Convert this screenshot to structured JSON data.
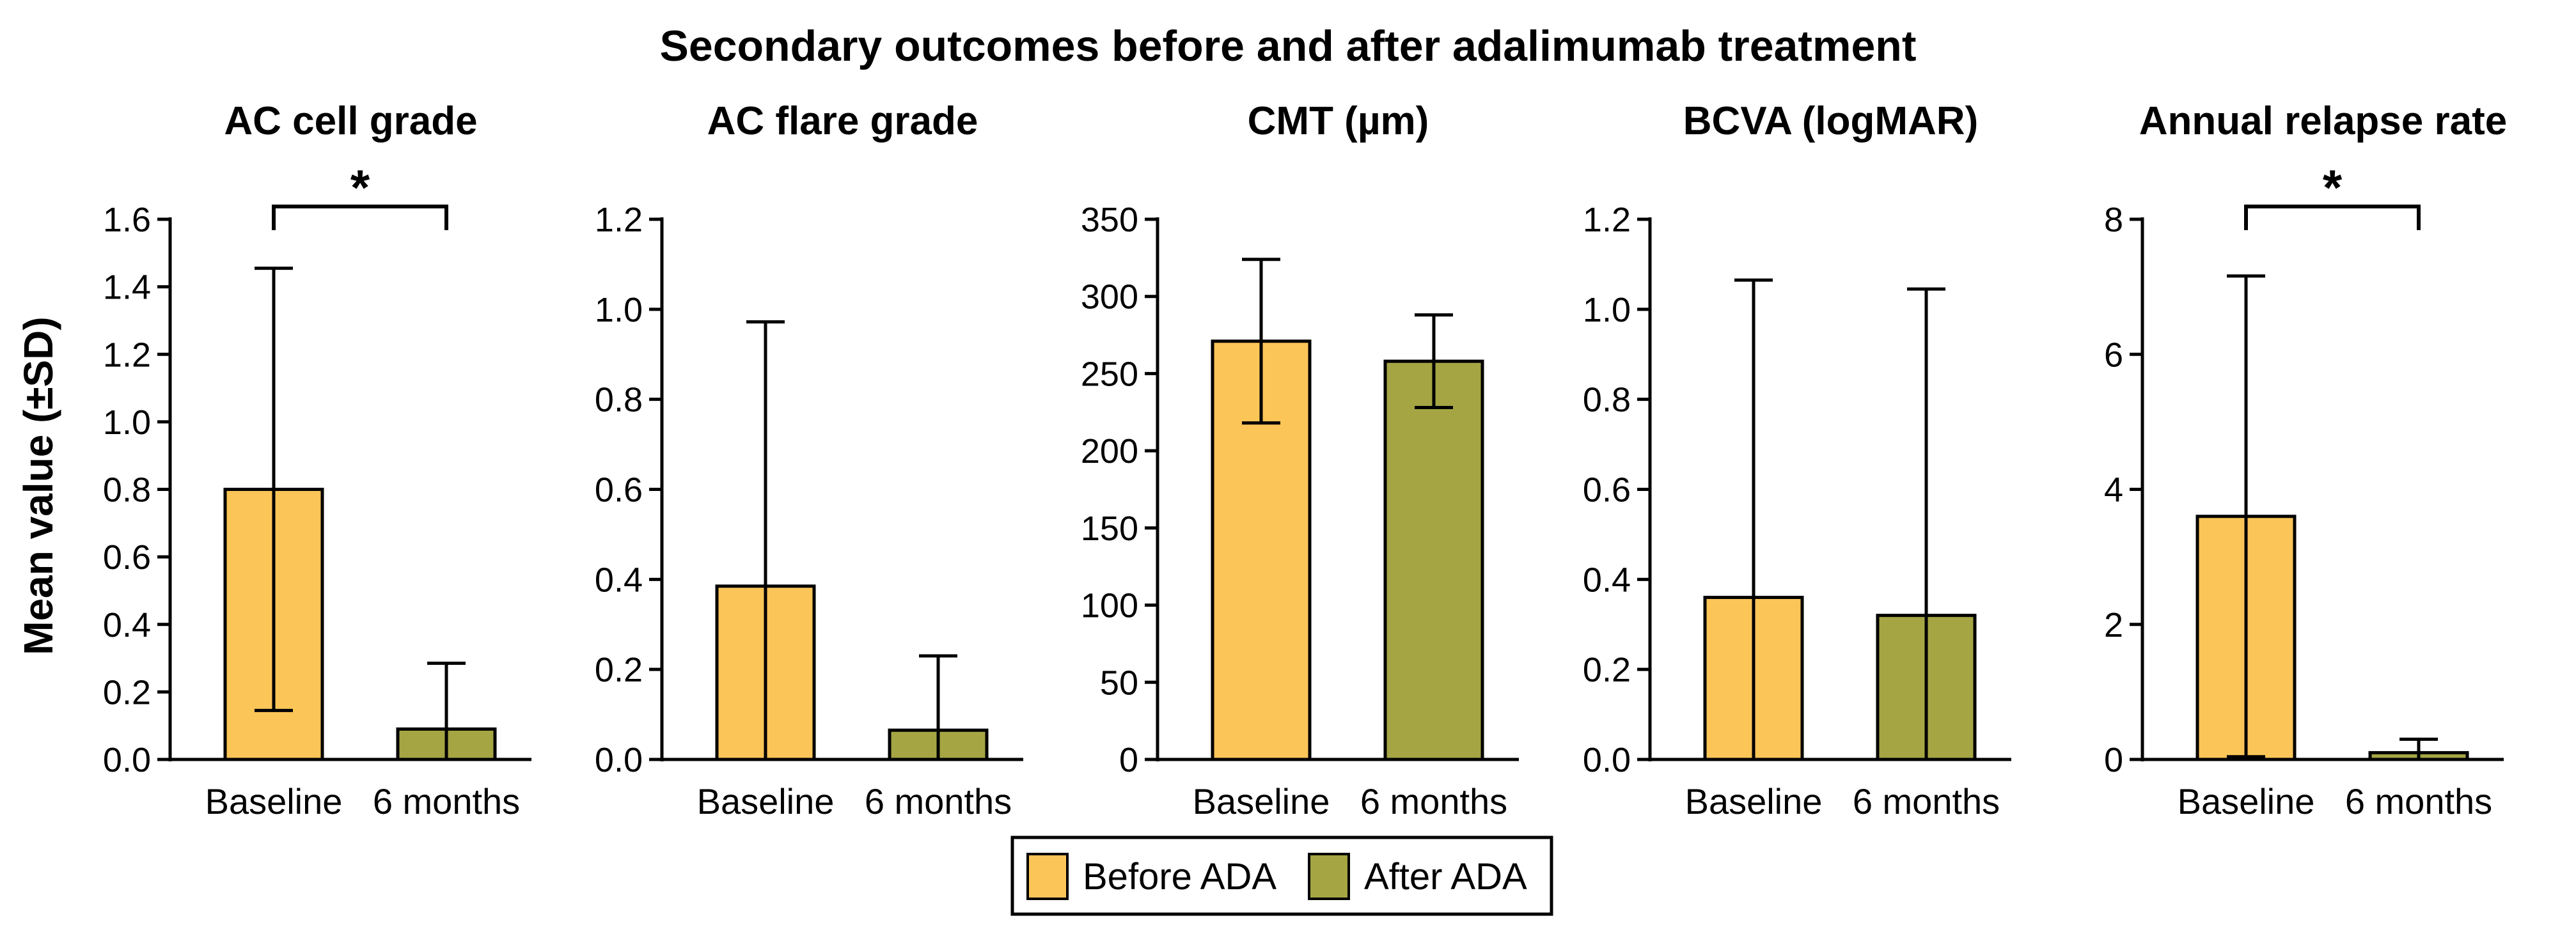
{
  "figure_title": "Secondary outcomes before and after adalimumab treatment",
  "y_axis_label": "Mean value (±SD)",
  "colors": {
    "before": "#FCC558",
    "after": "#A5A544",
    "axis": "#000000"
  },
  "legend": {
    "before_label": "Before ADA",
    "after_label": "After ADA"
  },
  "chart_data": [
    {
      "type": "bar",
      "title": "AC cell grade",
      "categories": [
        "Baseline",
        "6 months"
      ],
      "values": [
        0.8,
        0.09
      ],
      "errors": [
        0.655,
        0.195
      ],
      "ylim": [
        0,
        1.6
      ],
      "ticks": [
        0,
        0.2,
        0.4,
        0.6,
        0.8,
        1.0,
        1.2,
        1.4,
        1.6
      ],
      "tick_labels": [
        "0.0",
        "0.2",
        "0.4",
        "0.6",
        "0.8",
        "1.0",
        "1.2",
        "1.4",
        "1.6"
      ],
      "significance": "*"
    },
    {
      "type": "bar",
      "title": "AC flare grade",
      "categories": [
        "Baseline",
        "6 months"
      ],
      "values": [
        0.385,
        0.065
      ],
      "errors": [
        0.587,
        0.165
      ],
      "ylim": [
        0,
        1.2
      ],
      "ticks": [
        0,
        0.2,
        0.4,
        0.6,
        0.8,
        1.0,
        1.2
      ],
      "tick_labels": [
        "0.0",
        "0.2",
        "0.4",
        "0.6",
        "0.8",
        "1.0",
        "1.2"
      ],
      "significance": ""
    },
    {
      "type": "bar",
      "title": "CMT (µm)",
      "categories": [
        "Baseline",
        "6 months"
      ],
      "values": [
        271,
        258
      ],
      "errors": [
        53,
        30
      ],
      "ylim": [
        0,
        350
      ],
      "ticks": [
        0,
        50,
        100,
        150,
        200,
        250,
        300,
        350
      ],
      "tick_labels": [
        "0",
        "50",
        "100",
        "150",
        "200",
        "250",
        "300",
        "350"
      ],
      "significance": ""
    },
    {
      "type": "bar",
      "title": "BCVA (logMAR)",
      "categories": [
        "Baseline",
        "6 months"
      ],
      "values": [
        0.36,
        0.32
      ],
      "errors": [
        0.705,
        0.725
      ],
      "ylim": [
        0,
        1.2
      ],
      "ticks": [
        0,
        0.2,
        0.4,
        0.6,
        0.8,
        1.0,
        1.2
      ],
      "tick_labels": [
        "0.0",
        "0.2",
        "0.4",
        "0.6",
        "0.8",
        "1.0",
        "1.2"
      ],
      "significance": ""
    },
    {
      "type": "bar",
      "title": "Annual relapse rate",
      "categories": [
        "Baseline",
        "6 months"
      ],
      "values": [
        3.6,
        0.1
      ],
      "errors": [
        3.56,
        0.2
      ],
      "ylim": [
        0,
        8
      ],
      "ticks": [
        0,
        2,
        4,
        6,
        8
      ],
      "tick_labels": [
        "0",
        "2",
        "4",
        "6",
        "8"
      ],
      "significance": "*"
    }
  ]
}
